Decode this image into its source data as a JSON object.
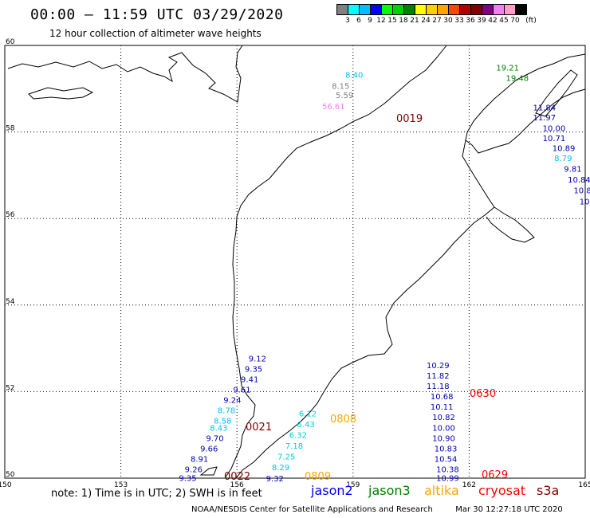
{
  "header": {
    "title": "00:00 – 11:59 UTC 03/29/2020",
    "subtitle": "12 hour collection of altimeter wave heights"
  },
  "colorbar": {
    "labels": [
      "3",
      "6",
      "9",
      "12",
      "15",
      "18",
      "21",
      "24",
      "27",
      "30",
      "33",
      "36",
      "39",
      "42",
      "45",
      "70"
    ],
    "unit": "(ft)",
    "colors": [
      "#808080",
      "#00ffff",
      "#00bfff",
      "#0000ff",
      "#00ff00",
      "#00d000",
      "#008000",
      "#ffff00",
      "#ffd000",
      "#ffa500",
      "#ff4500",
      "#b00000",
      "#800000",
      "#800080",
      "#ee82ee",
      "#ff9ec8",
      "#000000"
    ]
  },
  "map": {
    "lon_ticks": [
      "150",
      "153",
      "156",
      "159",
      "162",
      "165"
    ],
    "lat_ticks": [
      "50",
      "52",
      "54",
      "56",
      "58",
      "60"
    ],
    "tracks": [
      {
        "label": "0019",
        "label_color": "#800000",
        "points": [
          {
            "text": "8.40",
            "color": "#00bfff",
            "lon": 158.8,
            "lat": 59.25
          },
          {
            "text": "8.15",
            "color": "#808080",
            "lon": 158.45,
            "lat": 59.0
          },
          {
            "text": "5.59",
            "color": "#808080",
            "lon": 158.55,
            "lat": 58.78
          },
          {
            "text": "56.61",
            "color": "#ee82ee",
            "lon": 158.2,
            "lat": 58.53
          }
        ]
      },
      {
        "label": "",
        "label_color": "#008000",
        "points": [
          {
            "text": "19.21",
            "color": "#008000",
            "lon": 162.7,
            "lat": 59.42
          },
          {
            "text": "19.48",
            "color": "#008000",
            "lon": 162.95,
            "lat": 59.18
          }
        ]
      },
      {
        "label": "",
        "label_color": "#0000ff",
        "points": [
          {
            "text": "11.84",
            "color": "#0000b0",
            "lon": 163.65,
            "lat": 58.5
          },
          {
            "text": "11.97",
            "color": "#0000b0",
            "lon": 163.65,
            "lat": 58.27
          },
          {
            "text": "10.00",
            "color": "#0000b0",
            "lon": 163.9,
            "lat": 58.02
          },
          {
            "text": "10.71",
            "color": "#0000b0",
            "lon": 163.9,
            "lat": 57.79
          },
          {
            "text": "10.89",
            "color": "#0000b0",
            "lon": 164.15,
            "lat": 57.56
          },
          {
            "text": "8.79",
            "color": "#00bfff",
            "lon": 164.2,
            "lat": 57.33
          },
          {
            "text": "9.81",
            "color": "#0000b0",
            "lon": 164.45,
            "lat": 57.08
          },
          {
            "text": "10.84",
            "color": "#0000b0",
            "lon": 164.55,
            "lat": 56.83
          },
          {
            "text": "10.8",
            "color": "#0000b0",
            "lon": 164.7,
            "lat": 56.58
          },
          {
            "text": "10",
            "color": "#0000b0",
            "lon": 164.85,
            "lat": 56.33
          }
        ]
      },
      {
        "label": "0021",
        "label_color": "#800000",
        "points": [
          {
            "text": "9.12",
            "color": "#0000b0",
            "lon": 156.3,
            "lat": 52.7
          },
          {
            "text": "9.35",
            "color": "#0000b0",
            "lon": 156.2,
            "lat": 52.46
          },
          {
            "text": "9.41",
            "color": "#0000b0",
            "lon": 156.1,
            "lat": 52.22
          },
          {
            "text": "9.61",
            "color": "#0000b0",
            "lon": 155.9,
            "lat": 51.98
          },
          {
            "text": "9.24",
            "color": "#0000b0",
            "lon": 155.65,
            "lat": 51.74
          },
          {
            "text": "8.78",
            "color": "#00bfff",
            "lon": 155.5,
            "lat": 51.5
          },
          {
            "text": "8.58",
            "color": "#00bfff",
            "lon": 155.4,
            "lat": 51.26
          },
          {
            "text": "8.43",
            "color": "#00bfff",
            "lon": 155.3,
            "lat": 51.1
          },
          {
            "text": "9.70",
            "color": "#0000b0",
            "lon": 155.2,
            "lat": 50.86
          },
          {
            "text": "9.66",
            "color": "#0000b0",
            "lon": 155.05,
            "lat": 50.62
          },
          {
            "text": "8.91",
            "color": "#0000b0",
            "lon": 154.8,
            "lat": 50.38
          },
          {
            "text": "9.26",
            "color": "#0000b0",
            "lon": 154.65,
            "lat": 50.14
          },
          {
            "text": "9.35",
            "color": "#0000b0",
            "lon": 154.5,
            "lat": 49.94
          }
        ]
      },
      {
        "label": "0022",
        "label_color": "#800000",
        "points": []
      },
      {
        "label": "0808",
        "label_color": "#ffa500",
        "points": [
          {
            "text": "6.12",
            "color": "#00d0d0",
            "lon": 157.6,
            "lat": 51.43
          },
          {
            "text": "6.43",
            "color": "#00d0d0",
            "lon": 157.55,
            "lat": 51.18
          },
          {
            "text": "6.32",
            "color": "#00d0d0",
            "lon": 157.35,
            "lat": 50.93
          },
          {
            "text": "7.18",
            "color": "#00d0d0",
            "lon": 157.25,
            "lat": 50.68
          },
          {
            "text": "7.25",
            "color": "#00d0d0",
            "lon": 157.05,
            "lat": 50.43
          },
          {
            "text": "8.29",
            "color": "#00bfff",
            "lon": 156.9,
            "lat": 50.18
          },
          {
            "text": "9.32",
            "color": "#0000b0",
            "lon": 156.75,
            "lat": 49.93
          }
        ]
      },
      {
        "label": "0809",
        "label_color": "#ffa500",
        "points": []
      },
      {
        "label": "0630",
        "label_color": "#ff0000",
        "points": [
          {
            "text": "10.29",
            "color": "#0000b0",
            "lon": 160.9,
            "lat": 52.54
          },
          {
            "text": "11.82",
            "color": "#0000b0",
            "lon": 160.9,
            "lat": 52.3
          },
          {
            "text": "11.18",
            "color": "#0000b0",
            "lon": 160.9,
            "lat": 52.06
          },
          {
            "text": "10.68",
            "color": "#0000b0",
            "lon": 161.0,
            "lat": 51.82
          },
          {
            "text": "10.11",
            "color": "#0000b0",
            "lon": 161.0,
            "lat": 51.58
          },
          {
            "text": "10.82",
            "color": "#0000b0",
            "lon": 161.05,
            "lat": 51.34
          },
          {
            "text": "10.00",
            "color": "#0000b0",
            "lon": 161.05,
            "lat": 51.1
          },
          {
            "text": "10.90",
            "color": "#0000b0",
            "lon": 161.05,
            "lat": 50.86
          },
          {
            "text": "10.83",
            "color": "#0000b0",
            "lon": 161.1,
            "lat": 50.62
          },
          {
            "text": "10.54",
            "color": "#0000b0",
            "lon": 161.1,
            "lat": 50.38
          },
          {
            "text": "10.38",
            "color": "#0000b0",
            "lon": 161.15,
            "lat": 50.14
          },
          {
            "text": "10.99",
            "color": "#0000b0",
            "lon": 161.15,
            "lat": 49.94
          }
        ]
      },
      {
        "label": "0629",
        "label_color": "#ff0000",
        "points": []
      }
    ]
  },
  "legend": {
    "note": "note: 1) Time is in UTC; 2) SWH is in feet",
    "satellites": [
      {
        "name": "jason2",
        "color": "#0000ff"
      },
      {
        "name": "jason3",
        "color": "#008000"
      },
      {
        "name": "altika",
        "color": "#ffa500"
      },
      {
        "name": "cryosat",
        "color": "#ff0000"
      },
      {
        "name": "s3a",
        "color": "#800000"
      }
    ]
  },
  "footer": {
    "credit": "NOAA/NESDIS Center for Satellite Applications and Research",
    "timestamp": "Mar 30 12:27:18 UTC 2020"
  }
}
